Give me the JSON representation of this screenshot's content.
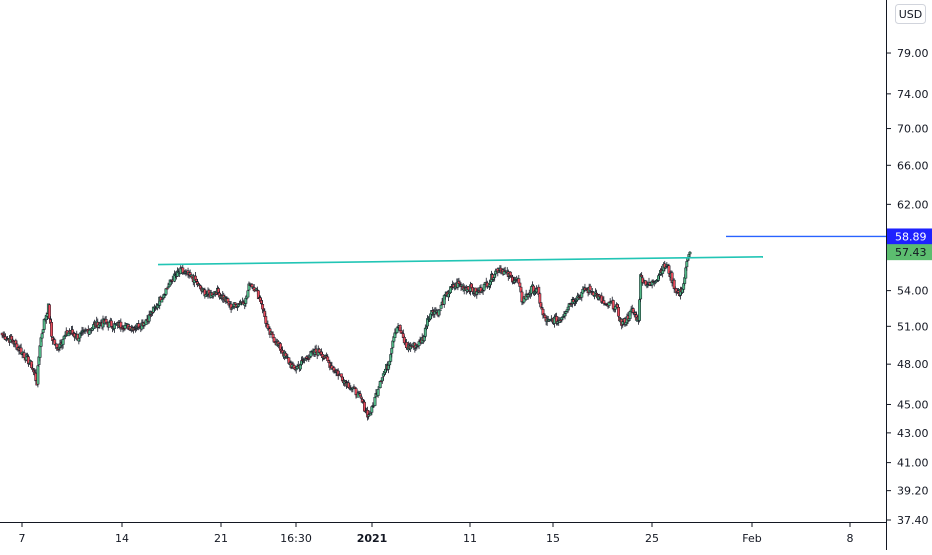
{
  "currency_button": "USD",
  "colors": {
    "up": "#26a69a",
    "up_body": "#53b987",
    "down": "#ef5350",
    "down_body": "#eb4d5c",
    "wick": "#131722",
    "trendline": "#22c5b5",
    "price_line": "#2962ff",
    "marker_blue": "#1e22ff",
    "marker_green": "#5cbd6f",
    "axis": "#131722"
  },
  "chart_data": {
    "type": "candlestick",
    "y_scale": "log",
    "ylim": [
      37.4,
      86.0
    ],
    "y_ticks": [
      "79.00",
      "74.00",
      "70.00",
      "66.00",
      "62.00",
      "54.00",
      "51.00",
      "48.00",
      "45.00",
      "43.00",
      "41.00",
      "39.20",
      "37.40"
    ],
    "x_ticks": [
      {
        "label": "7",
        "bold": false
      },
      {
        "label": "14",
        "bold": false
      },
      {
        "label": "21",
        "bold": false
      },
      {
        "label": "16:30",
        "bold": false
      },
      {
        "label": "2021",
        "bold": true
      },
      {
        "label": "11",
        "bold": false
      },
      {
        "label": "15",
        "bold": false
      },
      {
        "label": "25",
        "bold": false
      },
      {
        "label": "Feb",
        "bold": false
      },
      {
        "label": "8",
        "bold": false
      }
    ],
    "price_markers": [
      {
        "label": "58.89",
        "value": 58.89,
        "kind": "horizontal-line"
      },
      {
        "label": "57.43",
        "value": 57.43,
        "kind": "last-price"
      }
    ],
    "trendline": {
      "from": 56.3,
      "to": 57.0
    },
    "close_keypoints": [
      [
        0,
        50.3
      ],
      [
        10,
        49.8
      ],
      [
        20,
        48.8
      ],
      [
        28,
        47.9
      ],
      [
        33,
        46.6
      ],
      [
        36,
        49.6
      ],
      [
        40,
        51.4
      ],
      [
        44,
        52.6
      ],
      [
        47,
        50.2
      ],
      [
        52,
        49.2
      ],
      [
        57,
        49.9
      ],
      [
        64,
        50.6
      ],
      [
        72,
        50.1
      ],
      [
        80,
        50.6
      ],
      [
        88,
        51.1
      ],
      [
        96,
        51.3
      ],
      [
        106,
        51.1
      ],
      [
        115,
        51.1
      ],
      [
        124,
        50.9
      ],
      [
        133,
        51.2
      ],
      [
        140,
        51.8
      ],
      [
        146,
        52.6
      ],
      [
        152,
        53.5
      ],
      [
        158,
        54.4
      ],
      [
        164,
        55.2
      ],
      [
        170,
        55.7
      ],
      [
        176,
        55.4
      ],
      [
        183,
        55.0
      ],
      [
        190,
        54.0
      ],
      [
        197,
        53.6
      ],
      [
        204,
        54.0
      ],
      [
        211,
        53.4
      ],
      [
        218,
        52.6
      ],
      [
        225,
        52.9
      ],
      [
        232,
        53.2
      ],
      [
        236,
        54.7
      ],
      [
        241,
        54.2
      ],
      [
        247,
        53.0
      ],
      [
        253,
        50.6
      ],
      [
        258,
        50.1
      ],
      [
        265,
        49.2
      ],
      [
        272,
        48.3
      ],
      [
        278,
        47.6
      ],
      [
        284,
        48.0
      ],
      [
        291,
        48.6
      ],
      [
        297,
        48.9
      ],
      [
        303,
        49.0
      ],
      [
        309,
        48.3
      ],
      [
        315,
        47.7
      ],
      [
        321,
        47.2
      ],
      [
        327,
        46.7
      ],
      [
        333,
        46.2
      ],
      [
        338,
        45.8
      ],
      [
        342,
        45.3
      ],
      [
        346,
        44.6
      ],
      [
        349,
        44.2
      ],
      [
        352,
        44.6
      ],
      [
        356,
        45.7
      ],
      [
        360,
        46.8
      ],
      [
        365,
        47.6
      ],
      [
        368,
        48.0
      ],
      [
        373,
        50.4
      ],
      [
        377,
        51.1
      ],
      [
        381,
        50.2
      ],
      [
        385,
        49.3
      ],
      [
        391,
        49.4
      ],
      [
        397,
        49.6
      ],
      [
        402,
        50.2
      ],
      [
        405,
        51.7
      ],
      [
        410,
        52.3
      ],
      [
        416,
        52.2
      ],
      [
        422,
        53.5
      ],
      [
        428,
        54.2
      ],
      [
        434,
        54.6
      ],
      [
        440,
        54.3
      ],
      [
        446,
        54.2
      ],
      [
        452,
        53.8
      ],
      [
        458,
        54.3
      ],
      [
        464,
        54.8
      ],
      [
        469,
        55.6
      ],
      [
        474,
        56.0
      ],
      [
        479,
        55.6
      ],
      [
        485,
        55.1
      ],
      [
        491,
        54.9
      ],
      [
        495,
        53.2
      ],
      [
        500,
        53.6
      ],
      [
        505,
        54.2
      ],
      [
        510,
        53.9
      ],
      [
        515,
        51.9
      ],
      [
        520,
        51.3
      ],
      [
        525,
        51.6
      ],
      [
        530,
        51.4
      ],
      [
        535,
        52.1
      ],
      [
        540,
        52.9
      ],
      [
        545,
        53.3
      ],
      [
        550,
        53.6
      ],
      [
        555,
        54.1
      ],
      [
        560,
        54.0
      ],
      [
        565,
        53.8
      ],
      [
        570,
        53.2
      ],
      [
        575,
        52.6
      ],
      [
        580,
        52.9
      ],
      [
        585,
        52.5
      ],
      [
        590,
        51.2
      ],
      [
        595,
        51.6
      ],
      [
        600,
        52.3
      ],
      [
        605,
        51.6
      ],
      [
        606,
        51.7
      ],
      [
        608,
        55.2
      ],
      [
        612,
        54.8
      ],
      [
        617,
        54.4
      ],
      [
        620,
        54.8
      ],
      [
        624,
        55.2
      ],
      [
        628,
        55.9
      ],
      [
        633,
        56.2
      ],
      [
        637,
        55.2
      ],
      [
        641,
        54.2
      ],
      [
        645,
        53.6
      ],
      [
        649,
        54.6
      ],
      [
        652,
        56.4
      ],
      [
        655,
        57.43
      ]
    ]
  }
}
